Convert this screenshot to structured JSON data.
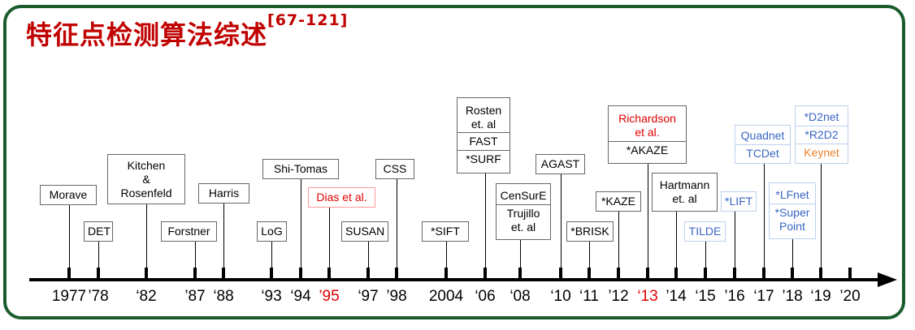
{
  "title": "特征点检测算法综述",
  "title_ref": "[67-121]",
  "colors": {
    "frame": "#1a5c2e",
    "title": "#c00000",
    "highlight": "#e00000",
    "blue": "#3a66c4",
    "orange": "#ee7f2c"
  },
  "years": [
    "1977",
    "’78",
    "‘82",
    "’87",
    "‘88",
    "‘93",
    "‘94",
    "’95",
    "‘97",
    "’98",
    "2004",
    "‘06",
    "‘08",
    "‘10",
    "‘11",
    "’12",
    "‘13",
    "’14",
    "‘15",
    "’16",
    "‘17",
    "’18",
    "‘19",
    "’20"
  ],
  "labels": {
    "moravec": "Morave",
    "det": "DET",
    "kitchen": [
      "Kitchen",
      "&",
      "Rosenfeld"
    ],
    "forstner": "Forstner",
    "harris": "Harris",
    "log": "LoG",
    "shi_tomas": "Shi-Tomas",
    "dias": "Dias et al.",
    "susan": "SUSAN",
    "css": "CSS",
    "sift": "*SIFT",
    "rosten": [
      "Rosten",
      "et. al"
    ],
    "fast": "FAST",
    "surf": "*SURF",
    "censure": "CenSurE",
    "trujillo": [
      "Trujillo",
      "et. al"
    ],
    "agast": "AGAST",
    "brisk": "*BRISK",
    "kaze": "*KAZE",
    "richardson": [
      "Richardson",
      "et al."
    ],
    "akaze": "*AKAZE",
    "hartmann": [
      "Hartmann",
      "et. al"
    ],
    "tilde": "TILDE",
    "lift": "*LIFT",
    "quadnet": "Quadnet",
    "tcdet": "TCDet",
    "lfnet": "*LFnet",
    "superpoint": [
      "*Super",
      "Point"
    ],
    "d2net": "*D2net",
    "r2d2": "*R2D2",
    "keynet": "Keynet"
  }
}
